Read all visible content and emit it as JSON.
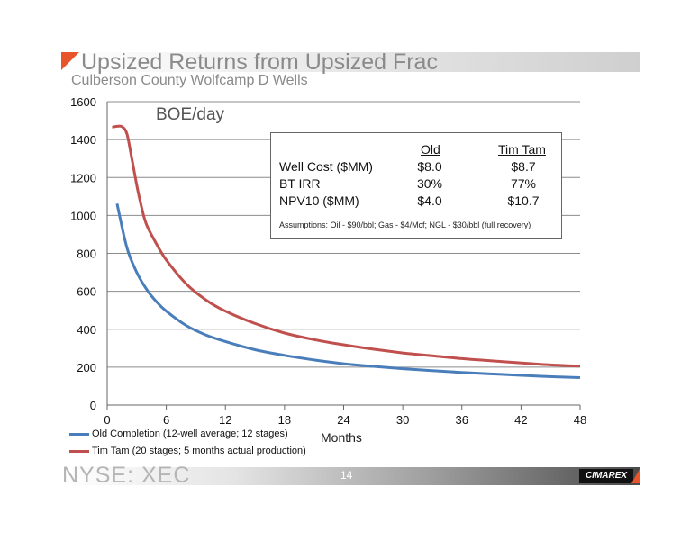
{
  "header": {
    "title": "Upsized Returns from Upsized Frac",
    "subtitle": "Culberson County Wolfcamp D Wells",
    "accent_color": "#e8552a"
  },
  "chart_data": {
    "type": "line",
    "ylabel": "BOE/day",
    "xlabel": "Months",
    "xlim": [
      0,
      48
    ],
    "ylim": [
      0,
      1600
    ],
    "x_ticks": [
      0,
      6,
      12,
      18,
      24,
      30,
      36,
      42,
      48
    ],
    "y_ticks": [
      0,
      200,
      400,
      600,
      800,
      1000,
      1200,
      1400,
      1600
    ],
    "grid": "horizontal",
    "legend_position": "bottom-left",
    "series": [
      {
        "name": "Old Completion (12-well average; 12 stages)",
        "color": "#4a7ebb",
        "x": [
          1,
          2,
          3,
          4,
          5,
          6,
          8,
          10,
          12,
          15,
          18,
          21,
          24,
          27,
          30,
          33,
          36,
          40,
          44,
          48
        ],
        "y": [
          1062,
          830,
          700,
          610,
          545,
          495,
          420,
          370,
          335,
          292,
          262,
          238,
          218,
          204,
          192,
          182,
          172,
          162,
          152,
          145
        ]
      },
      {
        "name": "Tim Tam (20 stages; 5 months actual production)",
        "color": "#c0504d",
        "x": [
          0.5,
          1,
          1.5,
          2,
          2.5,
          3,
          3.5,
          4,
          5,
          6,
          8,
          10,
          12,
          15,
          18,
          21,
          24,
          27,
          30,
          33,
          36,
          40,
          44,
          48
        ],
        "y": [
          1465,
          1470,
          1468,
          1430,
          1300,
          1160,
          1040,
          950,
          850,
          765,
          640,
          555,
          495,
          430,
          380,
          345,
          318,
          295,
          275,
          260,
          245,
          230,
          215,
          205
        ]
      }
    ]
  },
  "comparison_table": {
    "headers": [
      "Old",
      "Tim Tam"
    ],
    "rows": [
      {
        "label": "Well Cost ($MM)",
        "old": "$8.0",
        "timtam": "$8.7"
      },
      {
        "label": "BT IRR",
        "old": "30%",
        "timtam": "77%"
      },
      {
        "label": "NPV10 ($MM)",
        "old": "$4.0",
        "timtam": "$10.7"
      }
    ],
    "assumptions": "Assumptions:  Oil - $90/bbl; Gas - $4/Mcf; NGL - $30/bbl (full recovery)"
  },
  "footer": {
    "ticker": "NYSE: XEC",
    "page_number": "14",
    "logo_text": "CIMAREX"
  }
}
